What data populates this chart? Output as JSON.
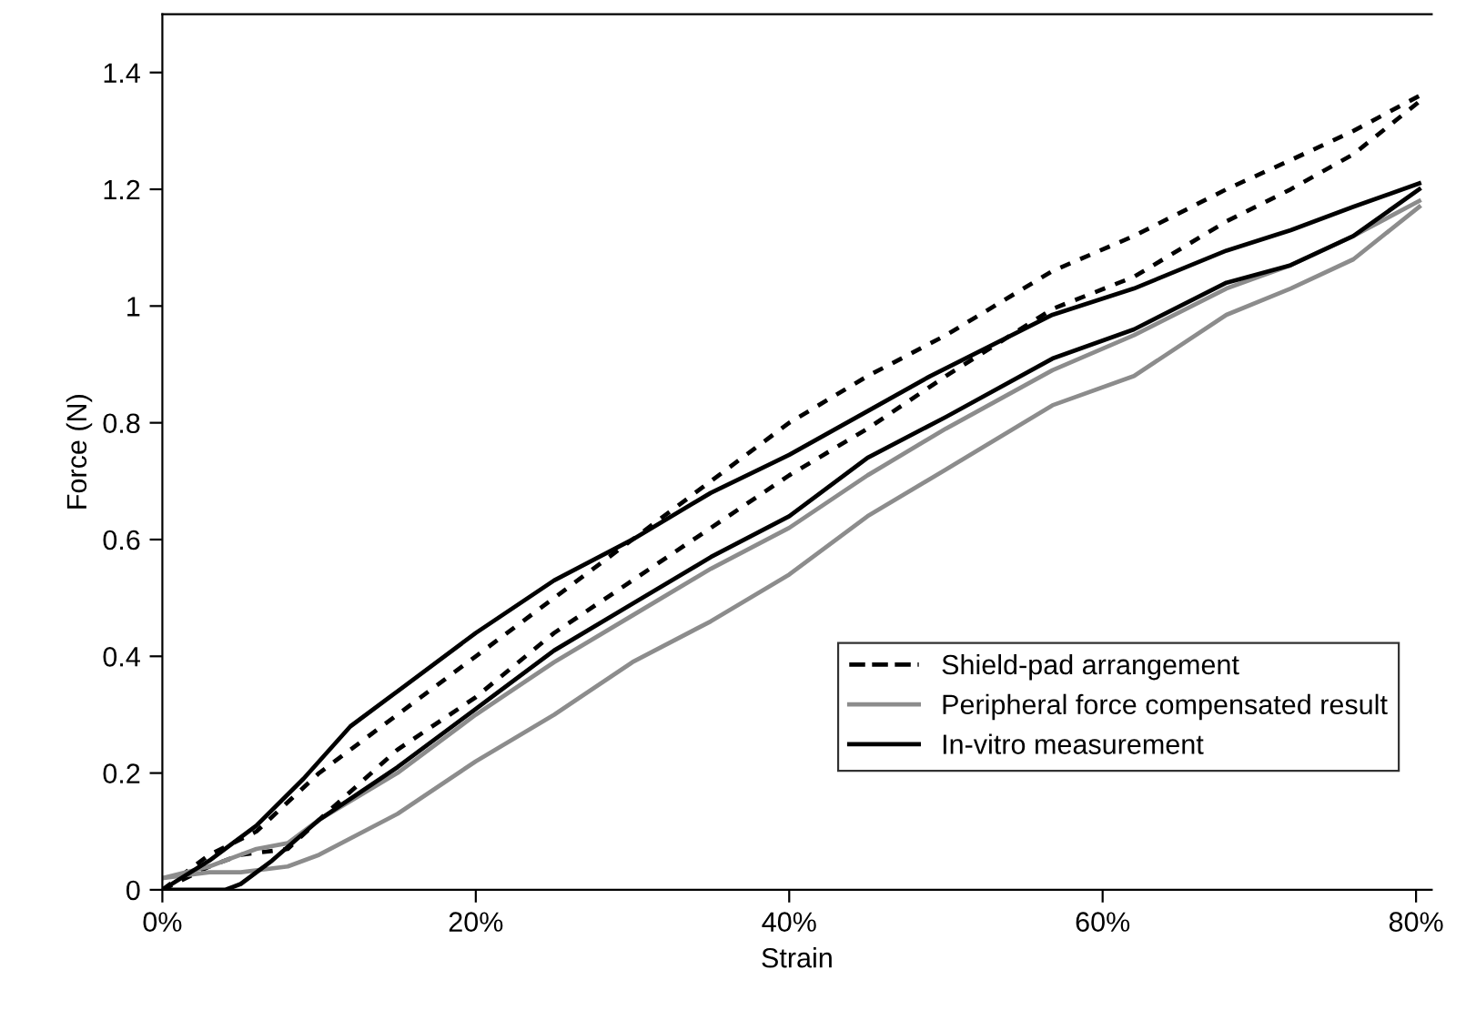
{
  "chart_data": {
    "type": "line",
    "xlabel": "Strain",
    "ylabel": "Force (N)",
    "xlim": [
      0,
      81
    ],
    "ylim": [
      0,
      1.5
    ],
    "xticks": [
      {
        "value": 0,
        "label": "0%"
      },
      {
        "value": 20,
        "label": "20%"
      },
      {
        "value": 40,
        "label": "40%"
      },
      {
        "value": 60,
        "label": "60%"
      },
      {
        "value": 80,
        "label": "80%"
      }
    ],
    "yticks": [
      0,
      0.2,
      0.4,
      0.6,
      0.8,
      1,
      1.2,
      1.4
    ],
    "grid": false,
    "legend": "bottom right",
    "marker": "none",
    "series": [
      {
        "name": "Shield-pad arrangement",
        "color": "#000000",
        "line_style": "dashed",
        "x": [
          0,
          3,
          6,
          10,
          15,
          20,
          25,
          30,
          35,
          40,
          45,
          50,
          56.8,
          62,
          67.9,
          72,
          76,
          80.2
        ],
        "values": [
          0,
          0.06,
          0.1,
          0.2,
          0.3,
          0.4,
          0.5,
          0.6,
          0.7,
          0.8,
          0.88,
          0.95,
          1.06,
          1.12,
          1.2,
          1.25,
          1.3,
          1.36
        ]
      },
      {
        "color": "#000000",
        "line_style": "dashed",
        "x": [
          0,
          3,
          5,
          8,
          10,
          15,
          20,
          25,
          30,
          35,
          40,
          45,
          50,
          56.8,
          62,
          67.9,
          72,
          76,
          80.2
        ],
        "values": [
          0,
          0.04,
          0.06,
          0.07,
          0.12,
          0.24,
          0.33,
          0.44,
          0.53,
          0.62,
          0.71,
          0.79,
          0.88,
          0.995,
          1.05,
          1.145,
          1.2,
          1.26,
          1.35
        ]
      },
      {
        "name": "Peripheral force compensated result",
        "color": "#8c8c8c",
        "line_style": "solid",
        "x": [
          0,
          3,
          6,
          8,
          10,
          15,
          20,
          25,
          30,
          35,
          40,
          45,
          50,
          56.8,
          62,
          67.9,
          72,
          76,
          80.2
        ],
        "values": [
          0.02,
          0.04,
          0.07,
          0.08,
          0.12,
          0.2,
          0.3,
          0.39,
          0.47,
          0.55,
          0.62,
          0.71,
          0.79,
          0.89,
          0.95,
          1.03,
          1.07,
          1.12,
          1.18
        ]
      },
      {
        "color": "#8c8c8c",
        "line_style": "solid",
        "x": [
          0,
          3,
          5,
          8,
          10,
          15,
          20,
          25,
          30,
          35,
          40,
          45,
          50,
          56.8,
          62,
          67.9,
          72,
          76,
          80.2
        ],
        "values": [
          0.02,
          0.03,
          0.03,
          0.04,
          0.06,
          0.13,
          0.22,
          0.3,
          0.39,
          0.46,
          0.54,
          0.64,
          0.72,
          0.83,
          0.88,
          0.985,
          1.03,
          1.08,
          1.17
        ]
      },
      {
        "name": "In-vitro measurement",
        "color": "#000000",
        "line_style": "solid",
        "x": [
          0,
          3,
          6,
          9,
          12,
          15,
          20,
          25,
          30,
          35,
          40,
          45,
          49,
          56.8,
          62,
          67.9,
          72,
          76,
          80.2
        ],
        "values": [
          0,
          0.05,
          0.11,
          0.19,
          0.28,
          0.34,
          0.44,
          0.53,
          0.6,
          0.68,
          0.745,
          0.82,
          0.88,
          0.985,
          1.03,
          1.095,
          1.13,
          1.17,
          1.21
        ]
      },
      {
        "color": "#000000",
        "line_style": "solid",
        "x": [
          0,
          4,
          5,
          7,
          10,
          15,
          20,
          25,
          30,
          35,
          40,
          45,
          50,
          56.8,
          62,
          67.9,
          72,
          76,
          80.2
        ],
        "values": [
          0,
          0,
          0.01,
          0.05,
          0.12,
          0.21,
          0.31,
          0.41,
          0.49,
          0.57,
          0.64,
          0.74,
          0.81,
          0.91,
          0.96,
          1.04,
          1.07,
          1.12,
          1.2
        ]
      }
    ]
  }
}
